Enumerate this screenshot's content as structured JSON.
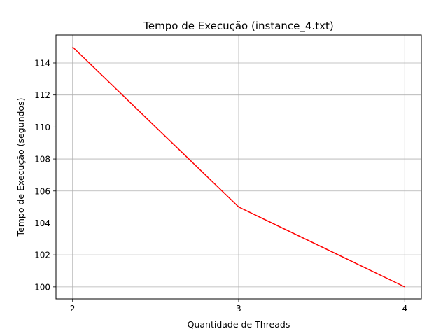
{
  "chart_data": {
    "type": "line",
    "title": "Tempo de Execução (instance_4.txt)",
    "xlabel": "Quantidade de Threads",
    "ylabel": "Tempo de Execução (segundos)",
    "x": [
      2,
      3,
      4
    ],
    "series": [
      {
        "values": [
          115,
          105,
          100
        ],
        "color": "#ff0000"
      }
    ],
    "xlim": [
      1.9,
      4.1
    ],
    "ylim": [
      99.25,
      115.75
    ],
    "xticks": [
      2,
      3,
      4
    ],
    "xtick_labels": [
      "2",
      "3",
      "4"
    ],
    "yticks": [
      100,
      102,
      104,
      106,
      108,
      110,
      112,
      114
    ],
    "ytick_labels": [
      "100",
      "102",
      "104",
      "106",
      "108",
      "110",
      "112",
      "114"
    ],
    "grid": true,
    "grid_color": "#b0b0b0",
    "legend": "none"
  }
}
